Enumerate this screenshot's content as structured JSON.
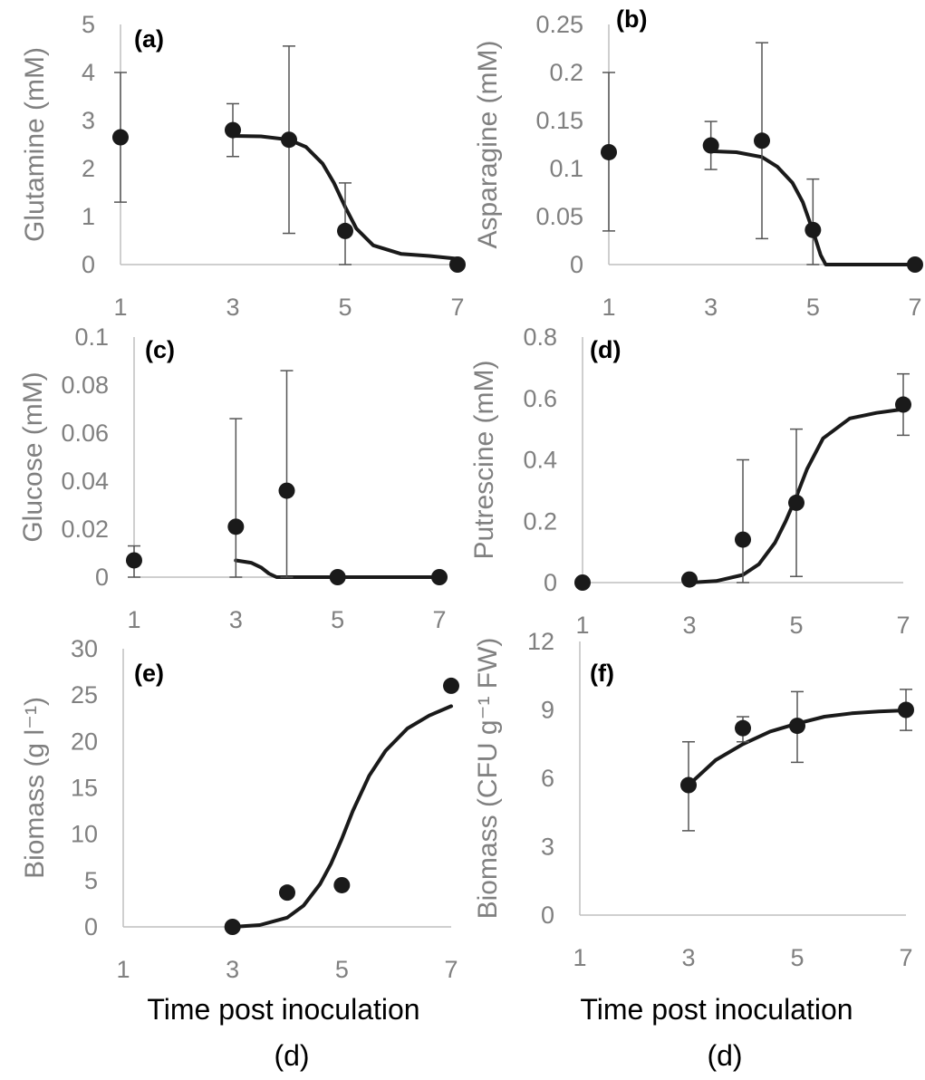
{
  "figure": {
    "x_title_line1": "Time post inoculation",
    "x_title_line2": "(d)",
    "colors": {
      "axis": "#BFBFBF",
      "tick_text": "#808080",
      "series": "#1A1A1A",
      "errorbar": "#555555"
    }
  },
  "chart_data": [
    {
      "id": "a",
      "type": "scatter",
      "panel_label": "(a)",
      "ylabel": "Glutamine (mM)",
      "xlabel": "Time post inoculation (d)",
      "xlim": [
        1,
        7
      ],
      "ylim": [
        0,
        5
      ],
      "xticks": [
        1,
        3,
        5,
        7
      ],
      "xtick_labels": [
        "1",
        "3",
        "5",
        "7"
      ],
      "yticks": [
        0,
        1,
        2,
        3,
        4,
        5
      ],
      "ytick_labels": [
        "0",
        "1",
        "2",
        "3",
        "4",
        "5"
      ],
      "points": [
        {
          "x": 1,
          "y": 2.65,
          "err_low": 1.35,
          "err_high": 1.35
        },
        {
          "x": 3,
          "y": 2.8,
          "err_low": 0.55,
          "err_high": 0.55
        },
        {
          "x": 4,
          "y": 2.6,
          "err_low": 1.95,
          "err_high": 1.95
        },
        {
          "x": 5,
          "y": 0.7,
          "err_low": 0.7,
          "err_high": 1.0
        },
        {
          "x": 7,
          "y": 0.0,
          "err_low": 0,
          "err_high": 0
        }
      ],
      "fit": {
        "x": [
          3,
          3.5,
          4,
          4.3,
          4.6,
          4.8,
          5,
          5.2,
          5.5,
          6,
          6.5,
          7
        ],
        "y": [
          2.68,
          2.67,
          2.6,
          2.45,
          2.1,
          1.7,
          1.2,
          0.75,
          0.4,
          0.22,
          0.18,
          0.12
        ]
      }
    },
    {
      "id": "b",
      "type": "scatter",
      "panel_label": "(b)",
      "ylabel": "Asparagine (mM)",
      "xlabel": "Time post inoculation (d)",
      "xlim": [
        1,
        7
      ],
      "ylim": [
        0,
        0.25
      ],
      "xticks": [
        1,
        3,
        5,
        7
      ],
      "xtick_labels": [
        "1",
        "3",
        "5",
        "7"
      ],
      "yticks": [
        0,
        0.05,
        0.1,
        0.15,
        0.2,
        0.25
      ],
      "ytick_labels": [
        "0",
        "0.05",
        "0.1",
        "0.15",
        "0.2",
        "0.25"
      ],
      "points": [
        {
          "x": 1,
          "y": 0.117,
          "err_low": 0.082,
          "err_high": 0.083
        },
        {
          "x": 3,
          "y": 0.124,
          "err_low": 0.025,
          "err_high": 0.025
        },
        {
          "x": 4,
          "y": 0.129,
          "err_low": 0.102,
          "err_high": 0.102
        },
        {
          "x": 5,
          "y": 0.036,
          "err_low": 0.036,
          "err_high": 0.053
        },
        {
          "x": 7,
          "y": 0.0,
          "err_low": 0,
          "err_high": 0
        }
      ],
      "fit": {
        "x": [
          3,
          3.5,
          4,
          4.3,
          4.6,
          4.8,
          5,
          5.15,
          5.25,
          6,
          7
        ],
        "y": [
          0.118,
          0.117,
          0.112,
          0.102,
          0.085,
          0.065,
          0.035,
          0.01,
          0,
          0,
          0
        ]
      }
    },
    {
      "id": "c",
      "type": "scatter",
      "panel_label": "(c)",
      "ylabel": "Glucose (mM)",
      "xlabel": "Time post inoculation (d)",
      "xlim": [
        1,
        7
      ],
      "ylim": [
        0,
        0.1
      ],
      "xticks": [
        1,
        3,
        5,
        7
      ],
      "xtick_labels": [
        "1",
        "3",
        "5",
        "7"
      ],
      "yticks": [
        0,
        0.02,
        0.04,
        0.06,
        0.08,
        0.1
      ],
      "ytick_labels": [
        "0",
        "0.02",
        "0.04",
        "0.06",
        "0.08",
        "0.1"
      ],
      "points": [
        {
          "x": 1,
          "y": 0.007,
          "err_low": 0.007,
          "err_high": 0.006
        },
        {
          "x": 3,
          "y": 0.021,
          "err_low": 0.021,
          "err_high": 0.045
        },
        {
          "x": 4,
          "y": 0.036,
          "err_low": 0.036,
          "err_high": 0.05
        },
        {
          "x": 5,
          "y": 0.0,
          "err_low": 0,
          "err_high": 0
        },
        {
          "x": 7,
          "y": 0.0,
          "err_low": 0,
          "err_high": 0
        }
      ],
      "fit": {
        "x": [
          3,
          3.3,
          3.5,
          3.65,
          3.8,
          4,
          5,
          7
        ],
        "y": [
          0.007,
          0.006,
          0.004,
          0.0015,
          0,
          0,
          0,
          0
        ]
      }
    },
    {
      "id": "d",
      "type": "scatter",
      "panel_label": "(d)",
      "ylabel": "Putrescine (mM)",
      "xlabel": "Time post inoculation (d)",
      "xlim": [
        1,
        7
      ],
      "ylim": [
        0,
        0.8
      ],
      "xticks": [
        1,
        3,
        5,
        7
      ],
      "xtick_labels": [
        "1",
        "3",
        "5",
        "7"
      ],
      "yticks": [
        0,
        0.2,
        0.4,
        0.6,
        0.8
      ],
      "ytick_labels": [
        "0",
        "0.2",
        "0.4",
        "0.6",
        "0.8"
      ],
      "points": [
        {
          "x": 1,
          "y": 0.0,
          "err_low": 0,
          "err_high": 0
        },
        {
          "x": 3,
          "y": 0.01,
          "err_low": 0,
          "err_high": 0
        },
        {
          "x": 4,
          "y": 0.14,
          "err_low": 0.14,
          "err_high": 0.26
        },
        {
          "x": 5,
          "y": 0.26,
          "err_low": 0.24,
          "err_high": 0.24
        },
        {
          "x": 7,
          "y": 0.58,
          "err_low": 0.1,
          "err_high": 0.1
        }
      ],
      "fit": {
        "x": [
          3,
          3.5,
          4,
          4.3,
          4.6,
          4.8,
          5,
          5.2,
          5.5,
          6,
          6.5,
          7
        ],
        "y": [
          0.0,
          0.005,
          0.025,
          0.06,
          0.13,
          0.2,
          0.28,
          0.37,
          0.47,
          0.535,
          0.553,
          0.565
        ]
      }
    },
    {
      "id": "e",
      "type": "scatter",
      "panel_label": "(e)",
      "ylabel": "Biomass (g l⁻¹)",
      "xlabel": "Time post inoculation (d)",
      "xlim": [
        1,
        7
      ],
      "ylim": [
        0,
        30
      ],
      "xticks": [
        1,
        3,
        5,
        7
      ],
      "xtick_labels": [
        "1",
        "3",
        "5",
        "7"
      ],
      "yticks": [
        0,
        5,
        10,
        15,
        20,
        25,
        30
      ],
      "ytick_labels": [
        "0",
        "5",
        "10",
        "15",
        "20",
        "25",
        "30"
      ],
      "points": [
        {
          "x": 3,
          "y": 0.0,
          "err_low": 0,
          "err_high": 0
        },
        {
          "x": 4,
          "y": 3.7,
          "err_low": 0,
          "err_high": 0
        },
        {
          "x": 5,
          "y": 4.5,
          "err_low": 0,
          "err_high": 0
        },
        {
          "x": 7,
          "y": 26.0,
          "err_low": 0,
          "err_high": 0
        }
      ],
      "fit": {
        "x": [
          3,
          3.5,
          4,
          4.3,
          4.6,
          4.8,
          5,
          5.2,
          5.5,
          5.8,
          6.2,
          6.6,
          7
        ],
        "y": [
          0.0,
          0.2,
          1.0,
          2.3,
          4.6,
          6.8,
          9.5,
          12.5,
          16.3,
          19.0,
          21.4,
          22.8,
          23.8
        ]
      }
    },
    {
      "id": "f",
      "type": "scatter",
      "panel_label": "(f)",
      "ylabel": "Biomass (CFU g⁻¹ FW)",
      "xlabel": "Time post inoculation (d)",
      "xlim": [
        1,
        7
      ],
      "ylim": [
        0,
        12
      ],
      "xticks": [
        1,
        3,
        5,
        7
      ],
      "xtick_labels": [
        "1",
        "3",
        "5",
        "7"
      ],
      "yticks": [
        0,
        3,
        6,
        9,
        12
      ],
      "ytick_labels": [
        "0",
        "3",
        "6",
        "9",
        "12"
      ],
      "points": [
        {
          "x": 3,
          "y": 5.7,
          "err_low": 2.0,
          "err_high": 1.9
        },
        {
          "x": 4,
          "y": 8.2,
          "err_low": 0.6,
          "err_high": 0.5
        },
        {
          "x": 5,
          "y": 8.3,
          "err_low": 1.6,
          "err_high": 1.5
        },
        {
          "x": 7,
          "y": 9.0,
          "err_low": 0.9,
          "err_high": 0.9
        }
      ],
      "fit": {
        "x": [
          3,
          3.5,
          4,
          4.5,
          5,
          5.5,
          6,
          6.5,
          7
        ],
        "y": [
          5.7,
          6.8,
          7.5,
          8.05,
          8.4,
          8.7,
          8.85,
          8.93,
          8.98
        ]
      }
    }
  ]
}
